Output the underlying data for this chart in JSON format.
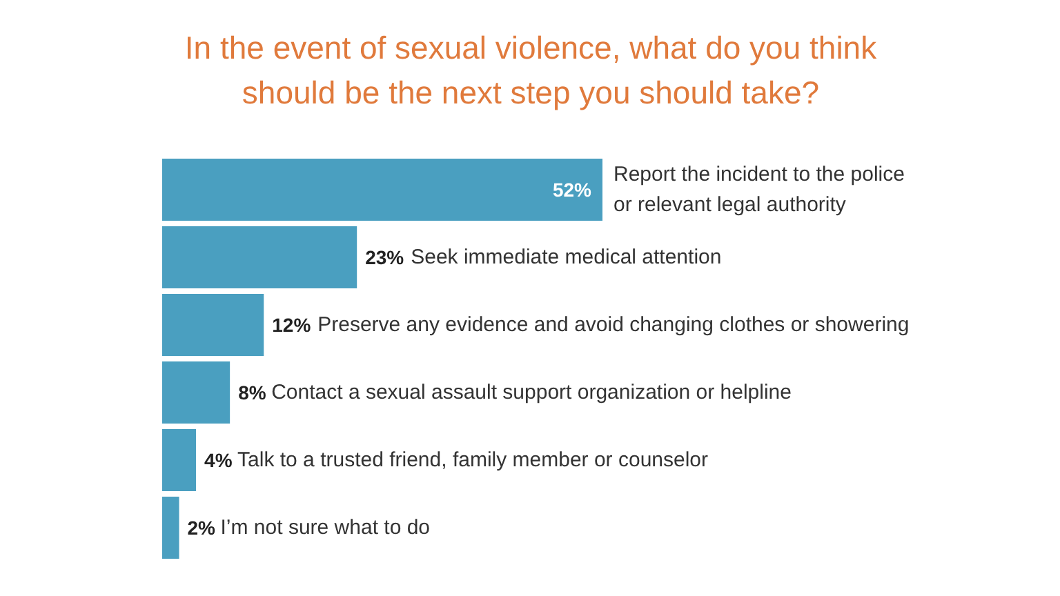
{
  "chart_data": {
    "type": "bar",
    "orientation": "horizontal",
    "title": "In the event of sexual violence, what do you think\nshould be the next step you should take?",
    "categories": [
      "Report the incident to the police\nor relevant legal authority",
      "Seek immediate medical attention",
      "Preserve any evidence and avoid changing clothes or showering",
      "Contact a sexual assault support organization or helpline",
      "Talk to a trusted friend, family member or counselor",
      "I’m not sure what to do"
    ],
    "values": [
      52,
      23,
      12,
      8,
      4,
      2
    ],
    "value_labels": [
      "52%",
      "23%",
      "12%",
      "8%",
      "4%",
      "2%"
    ],
    "color": "#4a9fc0",
    "grid": false
  }
}
